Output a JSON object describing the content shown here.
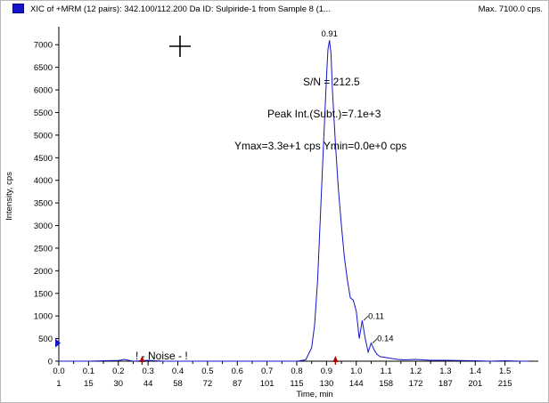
{
  "header": {
    "title": "XIC of +MRM (12 pairs): 342.100/112.200 Da ID: Sulpiride-1 from Sample 8 (1...",
    "max": "Max. 7100.0 cps.",
    "series_color": "#1414c8"
  },
  "chart_data": {
    "type": "line",
    "xlabel": "Time, min",
    "ylabel": "Intensity, cps",
    "xlim": [
      0.0,
      1.6
    ],
    "ylim": [
      0,
      7300
    ],
    "x_ticks": [
      "0.0",
      "0.1",
      "0.2",
      "0.3",
      "0.4",
      "0.5",
      "0.6",
      "0.7",
      "0.8",
      "0.9",
      "1.0",
      "1.1",
      "1.2",
      "1.3",
      "1.4",
      "1.5"
    ],
    "scan_ticks": [
      "1",
      "15",
      "30",
      "44",
      "58",
      "72",
      "87",
      "101",
      "115",
      "130",
      "144",
      "158",
      "172",
      "187",
      "201",
      "215"
    ],
    "y_ticks": [
      0,
      500,
      1000,
      1500,
      2000,
      2500,
      3000,
      3500,
      4000,
      4500,
      5000,
      5500,
      6000,
      6500,
      7000
    ],
    "line_color": "#1414c8",
    "series": [
      {
        "x": [
          0.0,
          0.05,
          0.1,
          0.15,
          0.2,
          0.22,
          0.25,
          0.3,
          0.35,
          0.4,
          0.45,
          0.5,
          0.55,
          0.6,
          0.65,
          0.7,
          0.75,
          0.8,
          0.83,
          0.85,
          0.86,
          0.87,
          0.88,
          0.89,
          0.9,
          0.905,
          0.91,
          0.915,
          0.92,
          0.93,
          0.94,
          0.95,
          0.96,
          0.97,
          0.98,
          0.99,
          1.0,
          1.01,
          1.02,
          1.03,
          1.04,
          1.05,
          1.06,
          1.07,
          1.08,
          1.1,
          1.12,
          1.14,
          1.16,
          1.2,
          1.25,
          1.3,
          1.35,
          1.4,
          1.45,
          1.5,
          1.55,
          1.58
        ],
        "y": [
          0,
          0,
          0,
          10,
          15,
          40,
          0,
          20,
          0,
          0,
          0,
          0,
          0,
          0,
          0,
          0,
          0,
          0,
          30,
          300,
          800,
          1800,
          3300,
          4800,
          6300,
          6900,
          7100,
          6800,
          6000,
          4800,
          3800,
          3000,
          2300,
          1800,
          1400,
          1350,
          1100,
          500,
          900,
          500,
          200,
          400,
          250,
          150,
          100,
          80,
          60,
          40,
          30,
          40,
          20,
          20,
          15,
          10,
          0,
          10,
          0,
          0
        ]
      }
    ],
    "peak_labels": [
      {
        "text": "0.91",
        "x": 0.91,
        "y": 7100
      },
      {
        "text": "0.11",
        "x": 1.025,
        "y": 900
      },
      {
        "text": "0.14",
        "x": 1.055,
        "y": 400
      }
    ],
    "annotations": {
      "sn": "S/N = 212.5",
      "peak_int": "Peak Int.(Subt.)=7.1e+3",
      "ymax": "Ymax=3.3e+1 cps  Ymin=0.0e+0 cps",
      "noise": "! - Noise -  !"
    },
    "noise_range": [
      0.27,
      0.5
    ],
    "markers_x": [
      0.28,
      0.93
    ]
  }
}
